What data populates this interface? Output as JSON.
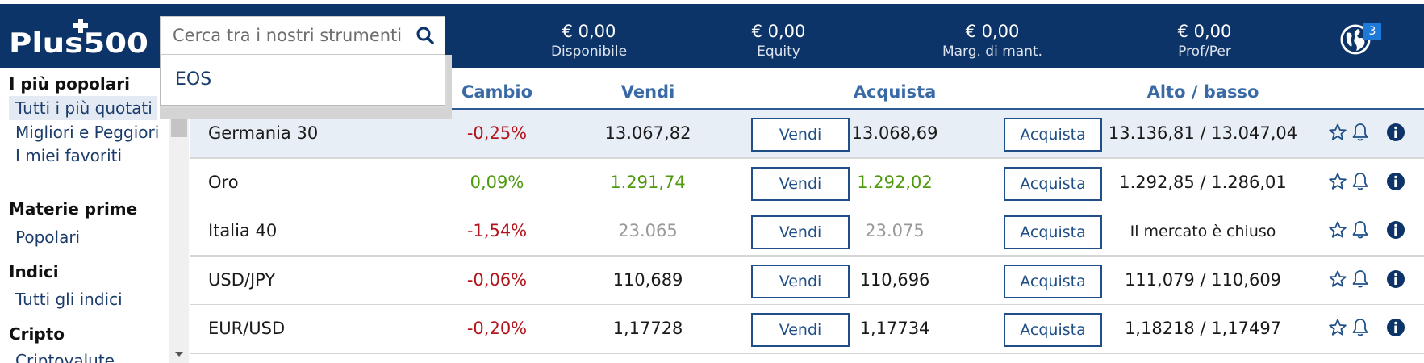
{
  "header": {
    "logo_text": "Plus500",
    "search": {
      "placeholder": "Cerca tra i nostri strumenti",
      "value": ""
    },
    "dropdown": {
      "items": [
        "EOS"
      ]
    },
    "account": [
      {
        "amount": "€ 0,00",
        "label": "Disponibile"
      },
      {
        "amount": "€ 0,00",
        "label": "Equity"
      },
      {
        "amount": "€ 0,00",
        "label": "Marg. di mant."
      },
      {
        "amount": "€ 0,00",
        "label": "Prof/Per"
      }
    ],
    "notifications": {
      "count": "3"
    }
  },
  "sidebar": {
    "sections": [
      {
        "heading": "I più popolari",
        "items": [
          "Tutti i più quotati",
          "Migliori e Peggiori",
          "I miei favoriti"
        ]
      },
      {
        "heading": "Materie prime",
        "items": [
          "Popolari"
        ]
      },
      {
        "heading": "Indici",
        "items": [
          "Tutti gli indici"
        ]
      },
      {
        "heading": "Cripto",
        "items": [
          "Criptovalute"
        ]
      }
    ],
    "active_item": "Tutti i più quotati"
  },
  "table": {
    "headers": {
      "change": "Cambio",
      "sell": "Vendi",
      "buy": "Acquista",
      "high_low": "Alto / basso"
    },
    "rows": [
      {
        "name": "Germania 30",
        "change": "-0,25%",
        "sell": "13.067,82",
        "sell_btn": "Vendi",
        "buy": "13.068,69",
        "buy_btn": "Acquista",
        "high_low": "13.136,81 / 13.047,04"
      },
      {
        "name": "Oro",
        "change": "0,09%",
        "sell": "1.291,74",
        "sell_btn": "Vendi",
        "buy": "1.292,02",
        "buy_btn": "Acquista",
        "high_low": "1.292,85 / 1.286,01"
      },
      {
        "name": "Italia 40",
        "change": "-1,54%",
        "sell": "23.065",
        "sell_btn": "Vendi",
        "buy": "23.075",
        "buy_btn": "Acquista",
        "high_low": "Il mercato è chiuso"
      },
      {
        "name": "USD/JPY",
        "change": "-0,06%",
        "sell": "110,689",
        "sell_btn": "Vendi",
        "buy": "110,696",
        "buy_btn": "Acquista",
        "high_low": "111,079 / 110,609"
      },
      {
        "name": "EUR/USD",
        "change": "-0,20%",
        "sell": "1,17728",
        "sell_btn": "Vendi",
        "buy": "1,17734",
        "buy_btn": "Acquista",
        "high_low": "1,18218 / 1,17497"
      }
    ]
  },
  "colors": {
    "header_bg": "#0d3468",
    "negative": "#b3141b",
    "positive": "#4e9a0e",
    "closed_market": "#999999",
    "link": "#1b3c6b",
    "button_border": "#1f4f86"
  }
}
